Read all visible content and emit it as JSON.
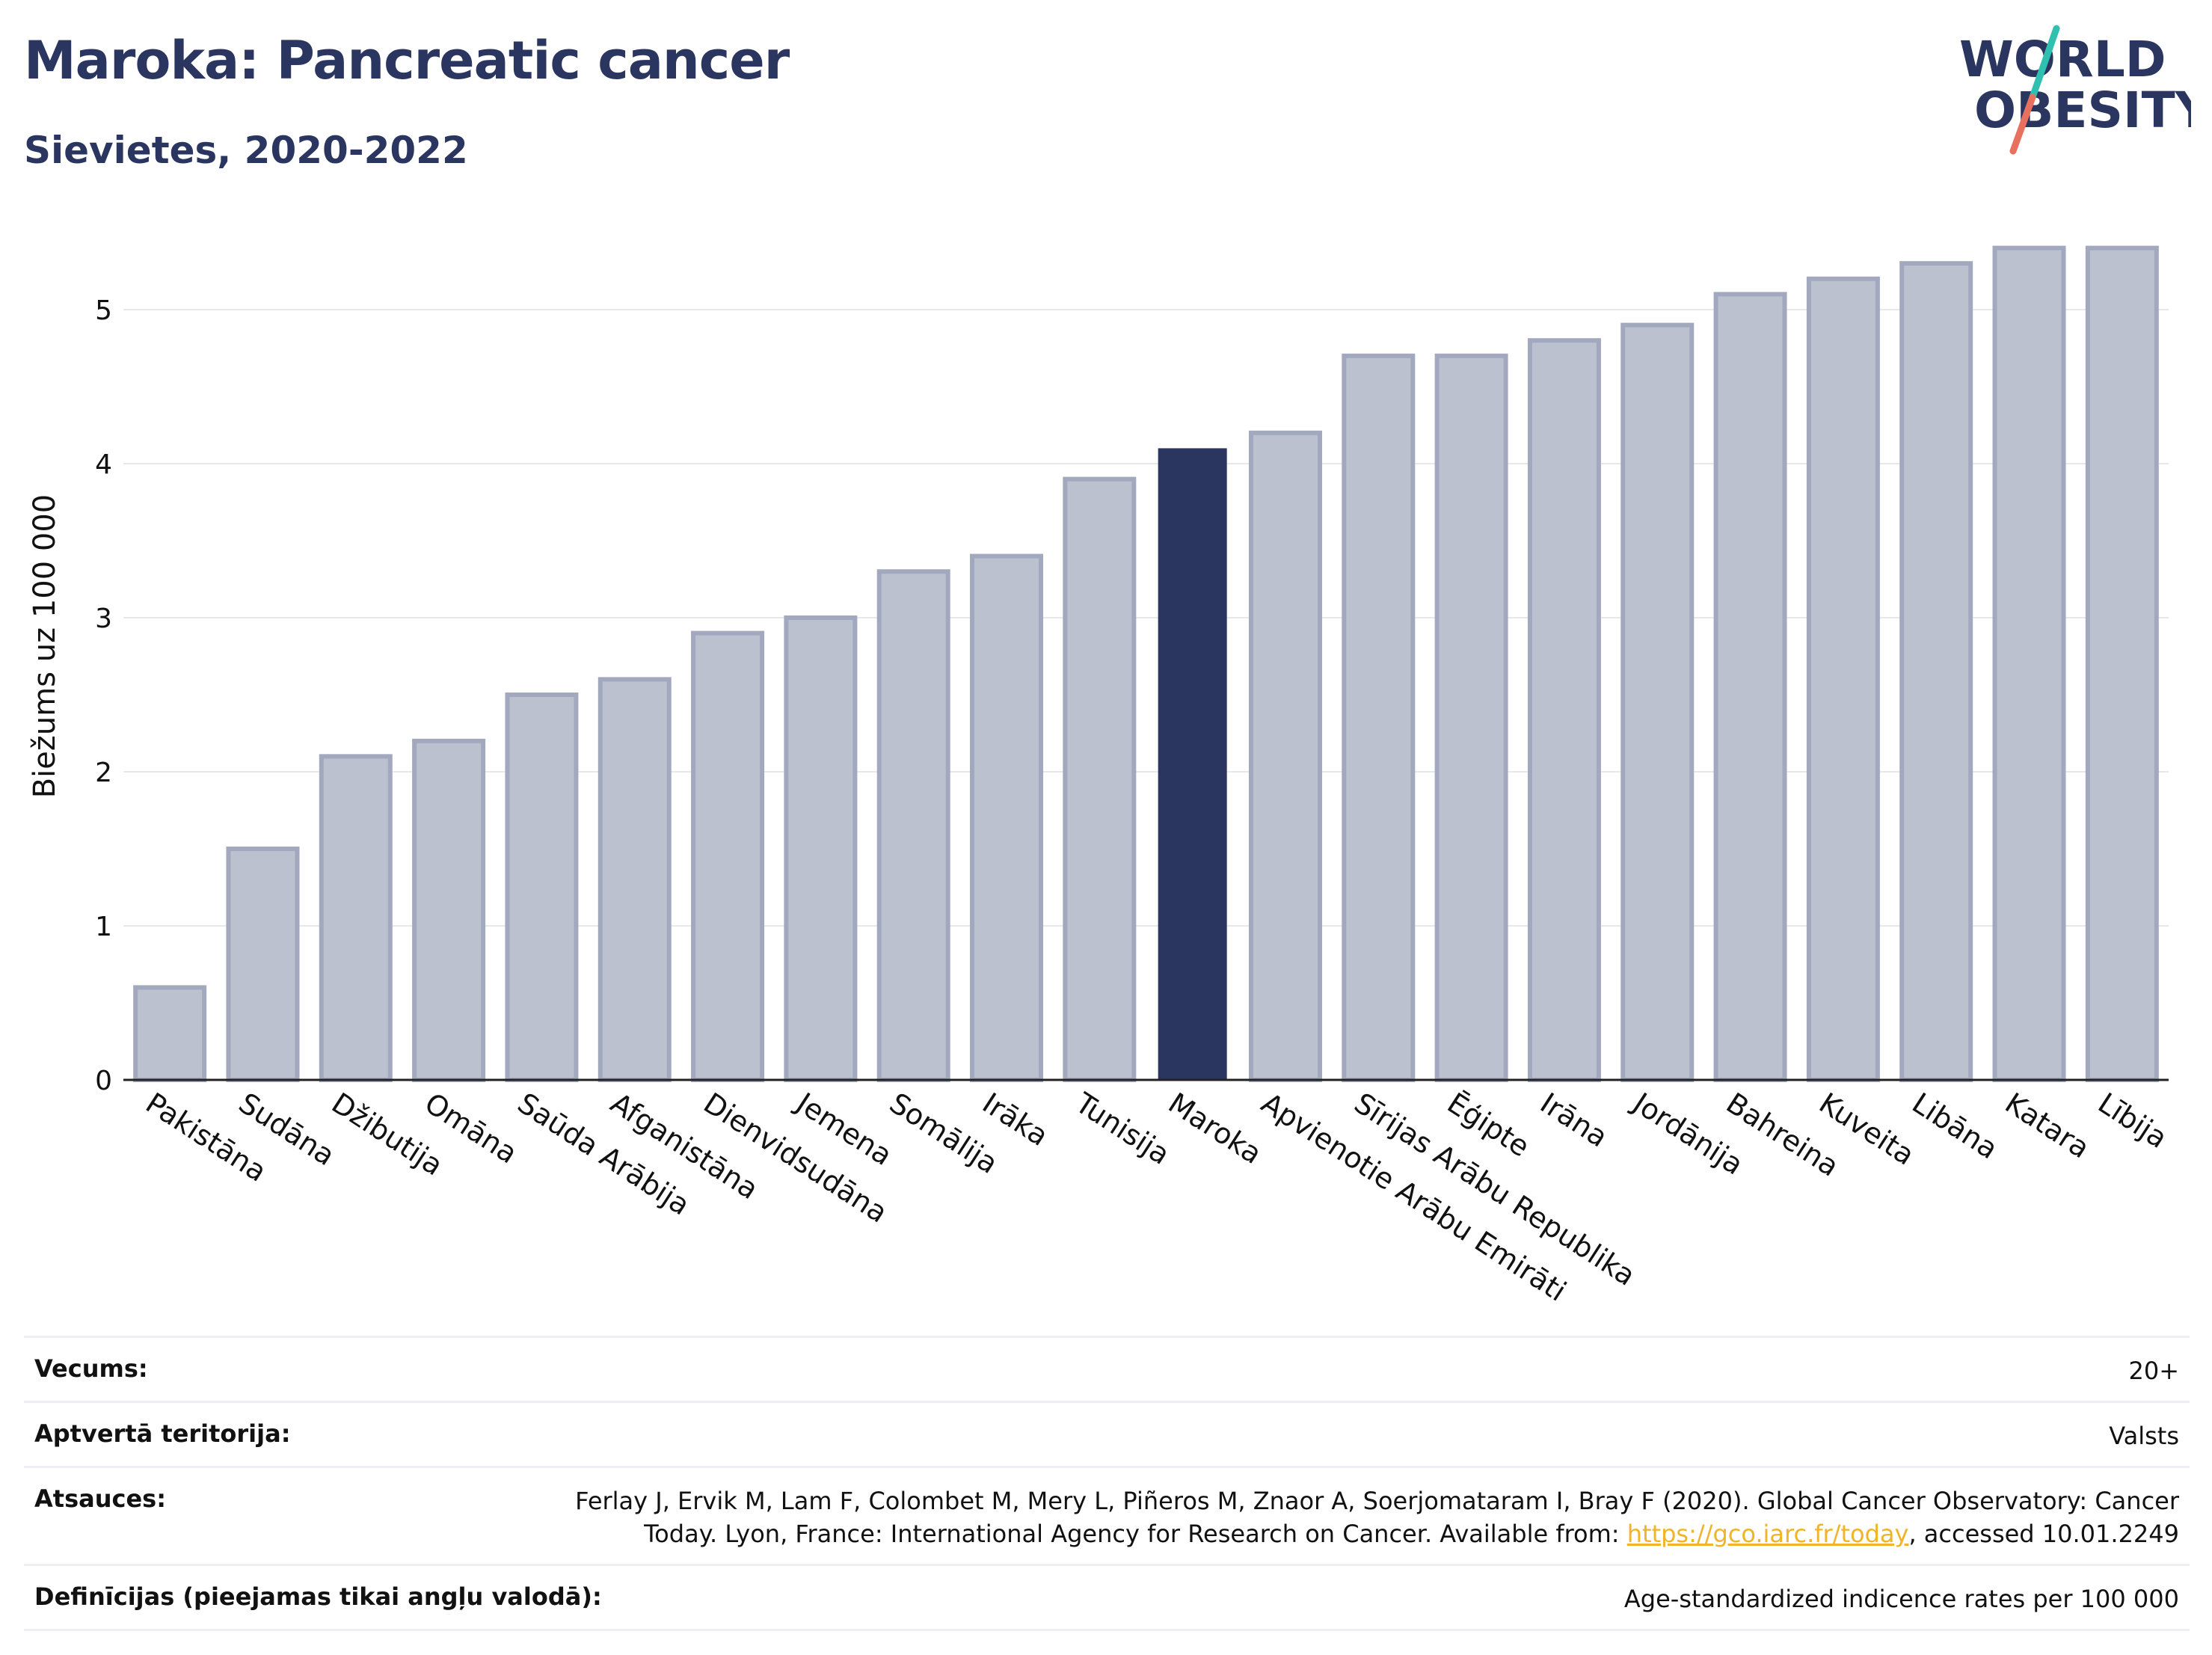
{
  "header": {
    "title": "Maroka: Pancreatic cancer",
    "subtitle": "Sievietes, 2020-2022",
    "logo_line1": "WORLD",
    "logo_line2": "OBESITY"
  },
  "colors": {
    "highlight": "#2a3560",
    "bar_fill": "#bcc1d0",
    "bar_stroke": "#a2a9be",
    "logo_teal": "#2fc0b0",
    "logo_coral": "#e8705f"
  },
  "chart_data": {
    "type": "bar",
    "ylabel": "Biežums uz 100 000",
    "xlabel": "",
    "ylim": [
      0,
      5.5
    ],
    "yticks": [
      0,
      1,
      2,
      3,
      4,
      5
    ],
    "grid": true,
    "highlight": "Maroka",
    "categories": [
      "Pakistāna",
      "Sudāna",
      "Džibutija",
      "Omāna",
      "Saūda Arābija",
      "Afganistāna",
      "Dienvidsudāna",
      "Jemena",
      "Somālija",
      "Irāka",
      "Tunisija",
      "Maroka",
      "Apvienotie Arābu Emirāti",
      "Sīrijas Arābu Republika",
      "Ēģipte",
      "Irāna",
      "Jordānija",
      "Bahreina",
      "Kuveita",
      "Libāna",
      "Katara",
      "Lībija"
    ],
    "values": [
      0.6,
      1.5,
      2.1,
      2.2,
      2.5,
      2.6,
      2.9,
      3.0,
      3.3,
      3.4,
      3.9,
      4.1,
      4.2,
      4.7,
      4.7,
      4.8,
      4.9,
      5.1,
      5.2,
      5.3,
      5.4,
      5.4
    ]
  },
  "meta": {
    "age_label": "Vecums:",
    "age_value": "20+",
    "territory_label": "Aptvertā teritorija:",
    "territory_value": "Valsts",
    "refs_label": "Atsauces:",
    "refs_line1": "Ferlay J, Ervik M, Lam F, Colombet M, Mery L, Piñeros M, Znaor A, Soerjomataram I, Bray F (2020). Global Cancer Observatory: Cancer",
    "refs_line2_pre": "Today. Lyon, France: International Agency for Research on Cancer. Available from: ",
    "refs_link": "https://gco.iarc.fr/today",
    "refs_line2_post": ", accessed 10.01.2249",
    "defs_label": "Definīcijas (pieejamas tikai angļu valodā):",
    "defs_value": "Age-standardized indicence rates per 100 000"
  }
}
